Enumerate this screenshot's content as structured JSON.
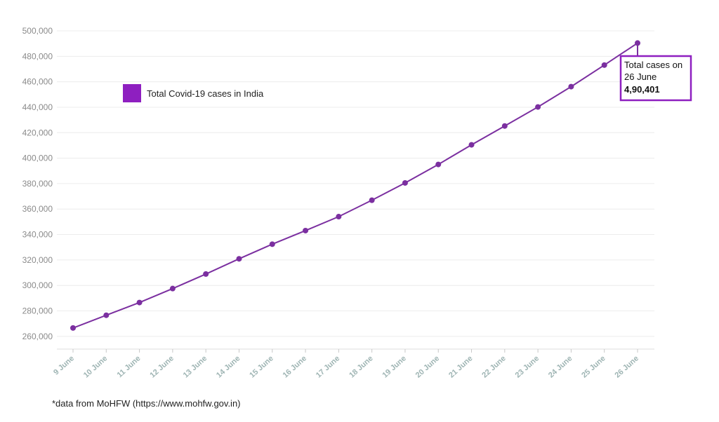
{
  "chart_data": {
    "type": "line",
    "title": "",
    "xlabel": "",
    "ylabel": "",
    "categories": [
      "9 June",
      "10 June",
      "11 June",
      "12 June",
      "13 June",
      "14 June",
      "15 June",
      "16 June",
      "17 June",
      "18 June",
      "19 June",
      "20 June",
      "21 June",
      "22 June",
      "23 June",
      "24 June",
      "25 June",
      "26 June"
    ],
    "series": [
      {
        "name": "Total Covid-19 cases in India",
        "color": "#7b2fa0",
        "values": [
          266598,
          276583,
          286579,
          297535,
          308993,
          320922,
          332424,
          343091,
          354065,
          366946,
          380532,
          395048,
          410461,
          425282,
          440215,
          456183,
          473105,
          490401
        ]
      }
    ],
    "ylim": [
      250000,
      500000
    ],
    "yticks": [
      260000,
      280000,
      300000,
      320000,
      340000,
      360000,
      380000,
      400000,
      420000,
      440000,
      460000,
      480000,
      500000
    ],
    "ytick_labels": [
      "260,000",
      "280,000",
      "300,000",
      "320,000",
      "340,000",
      "360,000",
      "380,000",
      "400,000",
      "420,000",
      "440,000",
      "460,000",
      "480,000",
      "500,000"
    ],
    "grid": true,
    "legend": {
      "placement": "top-left",
      "label": "Total Covid-19 cases in India",
      "swatch_color": "#8e1fc0"
    },
    "annotation": {
      "line1": "Total cases on",
      "line2": "26 June",
      "value": "4,90,401",
      "border_color": "#8e1fc0"
    }
  },
  "footnote": "*data from MoHFW (https://www.mohfw.gov.in)"
}
